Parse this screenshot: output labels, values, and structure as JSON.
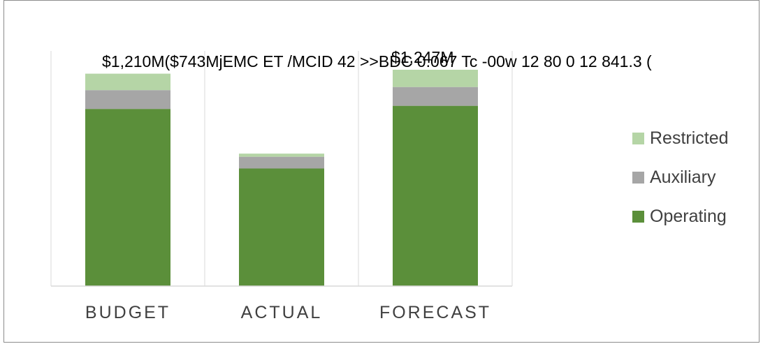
{
  "chart_data": {
    "type": "bar",
    "stacked": true,
    "categories": [
      "BUDGET",
      "ACTUAL",
      "FORECAST"
    ],
    "series": [
      {
        "name": "Operating",
        "values": [
          1130,
          750,
          1150
        ]
      },
      {
        "name": "Auxiliary",
        "values": [
          120,
          75,
          120
        ]
      },
      {
        "name": "Restricted",
        "values": [
          105,
          20,
          110
        ]
      }
    ],
    "colors": {
      "Operating": "#5b8f3a",
      "Auxiliary": "#a6a6a6",
      "Restricted": "#b5d5a6"
    },
    "ylim": [
      0,
      1500
    ],
    "grid": true,
    "legend": "right",
    "top_text": "$1,210M($743MjEMC ET /MCID 42 >>BDC 0.067 Tc -00w 12 80 0 12 841.3 (",
    "overlap_label": "$1,247M"
  }
}
